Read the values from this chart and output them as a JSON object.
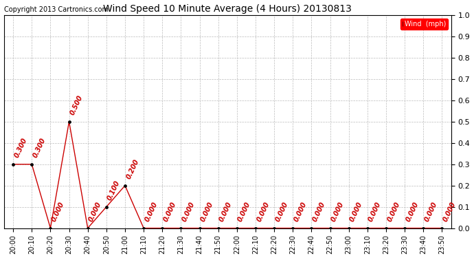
{
  "title": "Wind Speed 10 Minute Average (4 Hours) 20130813",
  "copyright": "Copyright 2013 Cartronics.com",
  "legend_label": "Wind  (mph)",
  "ylim": [
    0.0,
    1.0
  ],
  "yticks": [
    0.0,
    0.1,
    0.2,
    0.2,
    0.3,
    0.4,
    0.5,
    0.6,
    0.7,
    0.8,
    0.8,
    0.9,
    1.0
  ],
  "ytick_labels": [
    "0.0",
    "0.1",
    "0.2",
    "0.2",
    "0.3",
    "0.4",
    "0.5",
    "0.6",
    "0.7",
    "0.8",
    "0.8",
    "0.9",
    "1.0"
  ],
  "x_labels": [
    "20:00",
    "20:10",
    "20:20",
    "20:30",
    "20:40",
    "20:50",
    "21:00",
    "21:10",
    "21:20",
    "21:30",
    "21:40",
    "21:50",
    "22:00",
    "22:10",
    "22:20",
    "22:30",
    "22:40",
    "22:50",
    "23:00",
    "23:10",
    "23:20",
    "23:30",
    "23:40",
    "23:50"
  ],
  "y_values": [
    0.3,
    0.3,
    0.0,
    0.5,
    0.0,
    0.1,
    0.2,
    0.0,
    0.0,
    0.0,
    0.0,
    0.0,
    0.0,
    0.0,
    0.0,
    0.0,
    0.0,
    0.0,
    0.0,
    0.0,
    0.0,
    0.0,
    0.0,
    0.0
  ],
  "line_color": "#cc0000",
  "marker_color": "#000000",
  "label_color": "#cc0000",
  "bg_color": "#ffffff",
  "grid_color": "#bbbbbb",
  "title_fontsize": 10,
  "copyright_fontsize": 7,
  "tick_fontsize": 8,
  "xlabel_fontsize": 7,
  "value_label_fontsize": 7
}
